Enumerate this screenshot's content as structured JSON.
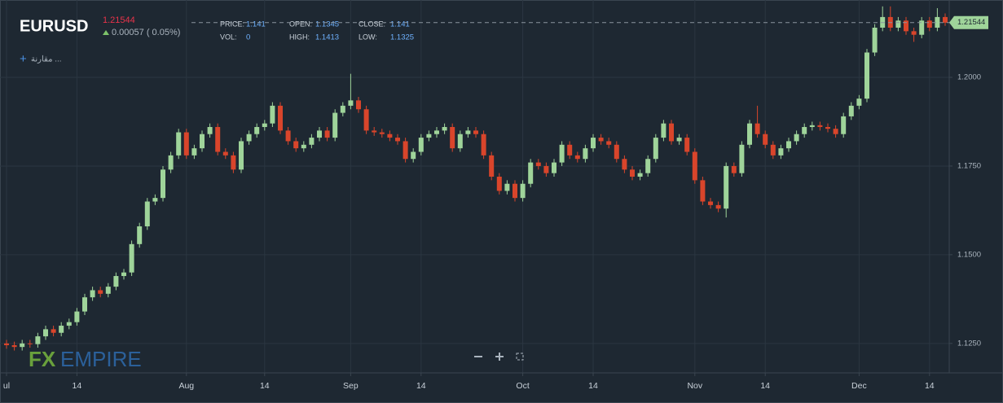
{
  "chart_data": {
    "type": "candlestick",
    "symbol": "EURUSD",
    "last_price": 1.21544,
    "change": "0.00057 ( 0.05%)",
    "info": [
      [
        "PRICE:",
        "1.141"
      ],
      [
        "OPEN:",
        "1.1345"
      ],
      [
        "CLOSE:",
        "1.141"
      ],
      [
        "VOL:",
        "0"
      ],
      [
        "HIGH:",
        "1.1413"
      ],
      [
        "LOW:",
        "1.1325"
      ]
    ],
    "compare": "مقارنة ...",
    "logo": [
      "FX",
      "EMPIRE"
    ],
    "up_color": "#9fd49a",
    "down_color": "#d9452b",
    "grid": true,
    "ylim": [
      1.1167,
      1.2218
    ],
    "yticks": [
      {
        "value": 1.125,
        "label": "1.1250"
      },
      {
        "value": 1.15,
        "label": "1.1500"
      },
      {
        "value": 1.175,
        "label": "1.1750"
      },
      {
        "value": 1.2,
        "label": "1.2000"
      }
    ],
    "categories": [
      "ul",
      null,
      null,
      null,
      null,
      null,
      null,
      null,
      null,
      "14",
      null,
      null,
      null,
      null,
      null,
      null,
      null,
      null,
      null,
      null,
      null,
      null,
      null,
      "Aug",
      null,
      null,
      null,
      null,
      null,
      null,
      null,
      null,
      null,
      "14",
      null,
      null,
      null,
      null,
      null,
      null,
      null,
      null,
      null,
      null,
      "Sep",
      null,
      null,
      null,
      null,
      null,
      null,
      null,
      null,
      "14",
      null,
      null,
      null,
      null,
      null,
      null,
      null,
      null,
      null,
      null,
      null,
      null,
      "Oct",
      null,
      null,
      null,
      null,
      null,
      null,
      null,
      null,
      "14",
      null,
      null,
      null,
      null,
      null,
      null,
      null,
      null,
      null,
      null,
      null,
      null,
      "Nov",
      null,
      null,
      null,
      null,
      null,
      null,
      null,
      null,
      "14",
      null,
      null,
      null,
      null,
      null,
      null,
      null,
      null,
      null,
      null,
      null,
      "Dec",
      null,
      null,
      null,
      null,
      null,
      null,
      null,
      null,
      "14",
      null,
      null
    ],
    "candles": [
      [
        1.125,
        1.126,
        1.1235,
        1.1245
      ],
      [
        1.1245,
        1.1255,
        1.123,
        1.124
      ],
      [
        1.124,
        1.126,
        1.123,
        1.125
      ],
      [
        1.125,
        1.126,
        1.1238,
        1.1248
      ],
      [
        1.1248,
        1.128,
        1.1238,
        1.127
      ],
      [
        1.127,
        1.13,
        1.126,
        1.129
      ],
      [
        1.129,
        1.13,
        1.127,
        1.128
      ],
      [
        1.128,
        1.131,
        1.127,
        1.13
      ],
      [
        1.13,
        1.132,
        1.129,
        1.131
      ],
      [
        1.131,
        1.135,
        1.13,
        1.134
      ],
      [
        1.134,
        1.139,
        1.133,
        1.138
      ],
      [
        1.138,
        1.141,
        1.137,
        1.14
      ],
      [
        1.14,
        1.141,
        1.138,
        1.139
      ],
      [
        1.139,
        1.142,
        1.138,
        1.141
      ],
      [
        1.141,
        1.145,
        1.14,
        1.144
      ],
      [
        1.144,
        1.146,
        1.143,
        1.145
      ],
      [
        1.145,
        1.154,
        1.144,
        1.153
      ],
      [
        1.153,
        1.159,
        1.152,
        1.158
      ],
      [
        1.158,
        1.166,
        1.157,
        1.165
      ],
      [
        1.165,
        1.167,
        1.164,
        1.166
      ],
      [
        1.166,
        1.175,
        1.165,
        1.174
      ],
      [
        1.174,
        1.179,
        1.173,
        1.178
      ],
      [
        1.178,
        1.1855,
        1.177,
        1.1845
      ],
      [
        1.1845,
        1.1855,
        1.177,
        1.178
      ],
      [
        1.178,
        1.181,
        1.177,
        1.18
      ],
      [
        1.18,
        1.185,
        1.179,
        1.184
      ],
      [
        1.184,
        1.187,
        1.183,
        1.186
      ],
      [
        1.186,
        1.187,
        1.178,
        1.179
      ],
      [
        1.179,
        1.18,
        1.177,
        1.178
      ],
      [
        1.178,
        1.179,
        1.173,
        1.174
      ],
      [
        1.174,
        1.183,
        1.173,
        1.182
      ],
      [
        1.182,
        1.185,
        1.181,
        1.184
      ],
      [
        1.184,
        1.187,
        1.183,
        1.186
      ],
      [
        1.186,
        1.188,
        1.185,
        1.187
      ],
      [
        1.187,
        1.193,
        1.186,
        1.192
      ],
      [
        1.192,
        1.193,
        1.184,
        1.185
      ],
      [
        1.185,
        1.186,
        1.181,
        1.182
      ],
      [
        1.182,
        1.183,
        1.179,
        1.18
      ],
      [
        1.18,
        1.182,
        1.179,
        1.181
      ],
      [
        1.181,
        1.184,
        1.18,
        1.183
      ],
      [
        1.183,
        1.186,
        1.182,
        1.185
      ],
      [
        1.185,
        1.186,
        1.182,
        1.183
      ],
      [
        1.183,
        1.191,
        1.182,
        1.19
      ],
      [
        1.19,
        1.193,
        1.189,
        1.192
      ],
      [
        1.192,
        1.201,
        1.191,
        1.1935
      ],
      [
        1.1935,
        1.1945,
        1.19,
        1.191
      ],
      [
        1.191,
        1.192,
        1.184,
        1.185
      ],
      [
        1.185,
        1.186,
        1.1835,
        1.1845
      ],
      [
        1.1845,
        1.1855,
        1.183,
        1.184
      ],
      [
        1.184,
        1.185,
        1.182,
        1.183
      ],
      [
        1.183,
        1.184,
        1.181,
        1.182
      ],
      [
        1.182,
        1.183,
        1.176,
        1.177
      ],
      [
        1.177,
        1.18,
        1.176,
        1.179
      ],
      [
        1.179,
        1.184,
        1.178,
        1.183
      ],
      [
        1.183,
        1.185,
        1.182,
        1.184
      ],
      [
        1.184,
        1.186,
        1.183,
        1.185
      ],
      [
        1.185,
        1.187,
        1.184,
        1.186
      ],
      [
        1.186,
        1.187,
        1.179,
        1.18
      ],
      [
        1.18,
        1.185,
        1.179,
        1.184
      ],
      [
        1.184,
        1.186,
        1.183,
        1.185
      ],
      [
        1.185,
        1.186,
        1.183,
        1.184
      ],
      [
        1.184,
        1.185,
        1.177,
        1.178
      ],
      [
        1.178,
        1.179,
        1.171,
        1.172
      ],
      [
        1.172,
        1.173,
        1.167,
        1.168
      ],
      [
        1.168,
        1.171,
        1.167,
        1.17
      ],
      [
        1.17,
        1.171,
        1.165,
        1.166
      ],
      [
        1.166,
        1.171,
        1.165,
        1.17
      ],
      [
        1.17,
        1.177,
        1.169,
        1.176
      ],
      [
        1.176,
        1.177,
        1.174,
        1.175
      ],
      [
        1.175,
        1.176,
        1.172,
        1.173
      ],
      [
        1.173,
        1.177,
        1.172,
        1.176
      ],
      [
        1.176,
        1.182,
        1.175,
        1.181
      ],
      [
        1.181,
        1.182,
        1.177,
        1.178
      ],
      [
        1.178,
        1.179,
        1.176,
        1.177
      ],
      [
        1.177,
        1.181,
        1.176,
        1.18
      ],
      [
        1.18,
        1.184,
        1.179,
        1.183
      ],
      [
        1.183,
        1.184,
        1.181,
        1.182
      ],
      [
        1.182,
        1.183,
        1.18,
        1.181
      ],
      [
        1.181,
        1.182,
        1.176,
        1.177
      ],
      [
        1.177,
        1.178,
        1.173,
        1.174
      ],
      [
        1.174,
        1.175,
        1.171,
        1.172
      ],
      [
        1.172,
        1.174,
        1.171,
        1.173
      ],
      [
        1.173,
        1.178,
        1.172,
        1.177
      ],
      [
        1.177,
        1.184,
        1.176,
        1.183
      ],
      [
        1.183,
        1.188,
        1.182,
        1.187
      ],
      [
        1.187,
        1.188,
        1.181,
        1.182
      ],
      [
        1.182,
        1.184,
        1.181,
        1.183
      ],
      [
        1.183,
        1.184,
        1.178,
        1.179
      ],
      [
        1.179,
        1.18,
        1.17,
        1.171
      ],
      [
        1.171,
        1.172,
        1.164,
        1.165
      ],
      [
        1.165,
        1.166,
        1.163,
        1.164
      ],
      [
        1.164,
        1.165,
        1.162,
        1.163
      ],
      [
        1.163,
        1.176,
        1.1605,
        1.175
      ],
      [
        1.175,
        1.176,
        1.172,
        1.173
      ],
      [
        1.173,
        1.182,
        1.172,
        1.181
      ],
      [
        1.181,
        1.188,
        1.18,
        1.187
      ],
      [
        1.187,
        1.192,
        1.183,
        1.184
      ],
      [
        1.184,
        1.185,
        1.18,
        1.181
      ],
      [
        1.181,
        1.182,
        1.177,
        1.178
      ],
      [
        1.178,
        1.181,
        1.177,
        1.18
      ],
      [
        1.18,
        1.183,
        1.179,
        1.182
      ],
      [
        1.182,
        1.185,
        1.181,
        1.184
      ],
      [
        1.184,
        1.187,
        1.183,
        1.186
      ],
      [
        1.186,
        1.1875,
        1.185,
        1.1865
      ],
      [
        1.1865,
        1.1875,
        1.185,
        1.186
      ],
      [
        1.186,
        1.187,
        1.1845,
        1.1855
      ],
      [
        1.1855,
        1.1865,
        1.183,
        1.184
      ],
      [
        1.184,
        1.19,
        1.183,
        1.189
      ],
      [
        1.189,
        1.193,
        1.188,
        1.192
      ],
      [
        1.192,
        1.195,
        1.191,
        1.194
      ],
      [
        1.194,
        1.208,
        1.193,
        1.207
      ],
      [
        1.207,
        1.215,
        1.206,
        1.214
      ],
      [
        1.214,
        1.22,
        1.213,
        1.217
      ],
      [
        1.217,
        1.22,
        1.213,
        1.214
      ],
      [
        1.214,
        1.217,
        1.213,
        1.216
      ],
      [
        1.216,
        1.217,
        1.212,
        1.213
      ],
      [
        1.213,
        1.214,
        1.21,
        1.212
      ],
      [
        1.212,
        1.217,
        1.211,
        1.216
      ],
      [
        1.216,
        1.217,
        1.213,
        1.214
      ],
      [
        1.214,
        1.2195,
        1.213,
        1.217
      ],
      [
        1.217,
        1.218,
        1.2145,
        1.2154
      ]
    ]
  }
}
